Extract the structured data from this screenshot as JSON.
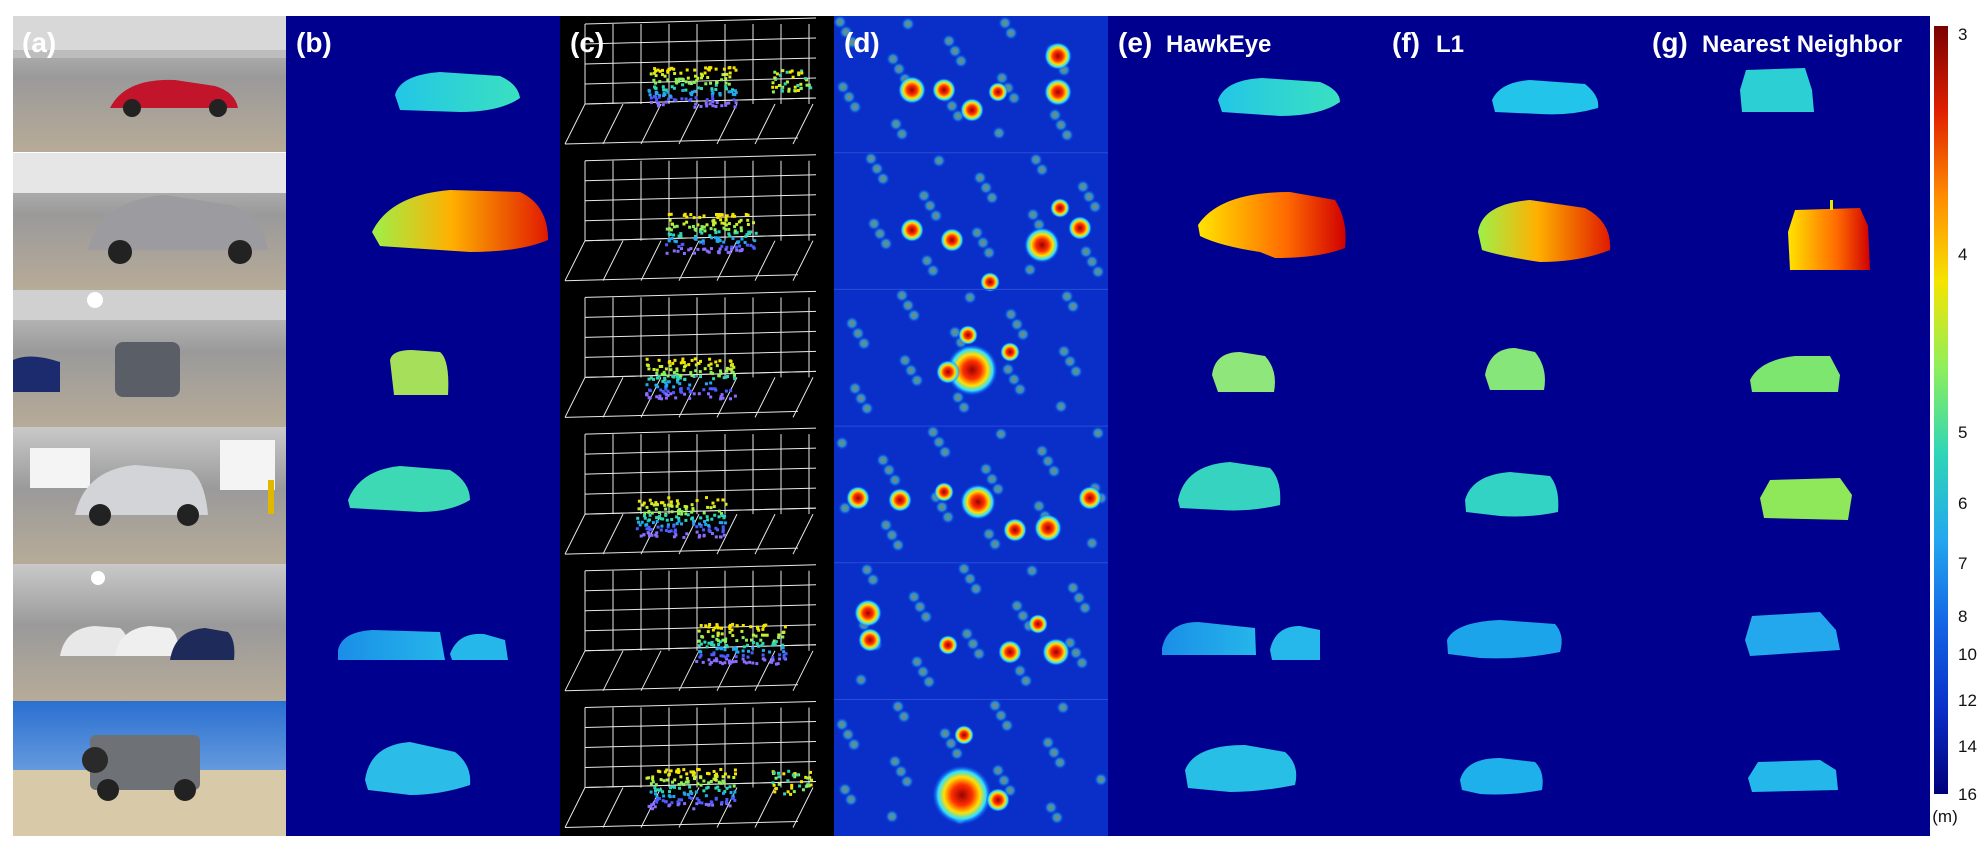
{
  "figure": {
    "panels": [
      {
        "id": "a",
        "label": "(a)",
        "title": ""
      },
      {
        "id": "b",
        "label": "(b)",
        "title": ""
      },
      {
        "id": "c",
        "label": "(c)",
        "title": ""
      },
      {
        "id": "d",
        "label": "(d)",
        "title": ""
      },
      {
        "id": "e",
        "label": "(e)",
        "title": "HawkEye"
      },
      {
        "id": "f",
        "label": "(f)",
        "title": "L1"
      },
      {
        "id": "g",
        "label": "(g)",
        "title": "Nearest Neighbor"
      }
    ],
    "rows": 6
  },
  "colorbar": {
    "ticks": [
      "3",
      "4",
      "5",
      "6",
      "7",
      "8",
      "10",
      "12",
      "14",
      "16"
    ],
    "unit": "(m)",
    "colors": [
      "#7a0000",
      "#e02000",
      "#ff8c00",
      "#f5e400",
      "#8fef5a",
      "#2fd6b6",
      "#23a8ee",
      "#1466e6",
      "#0a2fc8",
      "#00007a"
    ]
  },
  "colors": {
    "background_dark_blue": "#00008f",
    "panel_c_background": "#000000",
    "grid_line": "#e8e8e8"
  }
}
